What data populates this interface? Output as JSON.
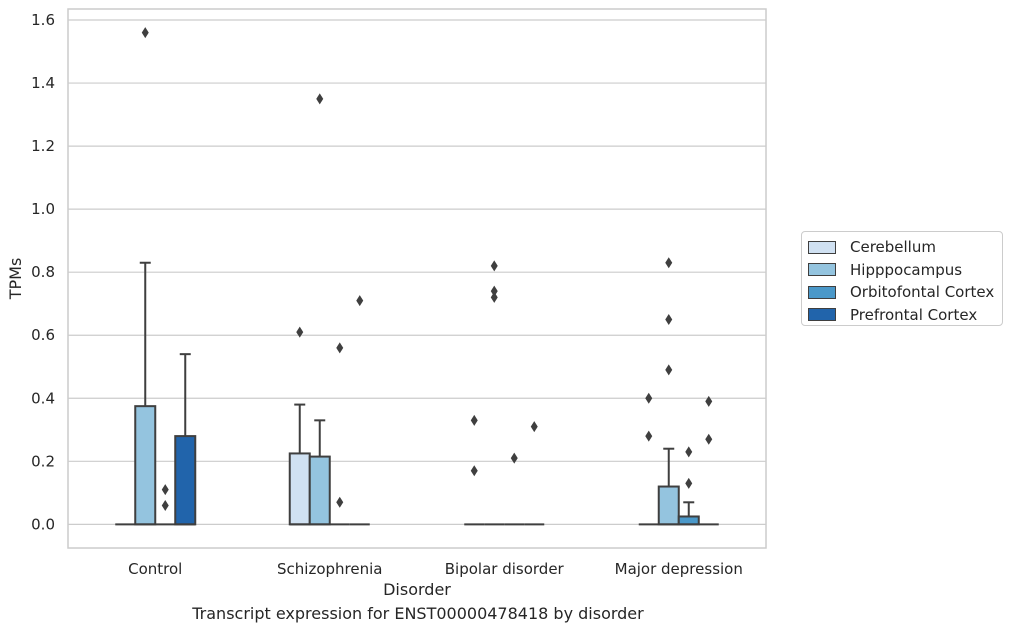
{
  "chart_data": {
    "type": "box",
    "xlabel": "Disorder",
    "ylabel": "TPMs",
    "caption": "Transcript expression for ENST00000478418 by disorder",
    "ylim": [
      -0.075,
      1.635
    ],
    "yticks": [
      0.0,
      0.2,
      0.4,
      0.6,
      0.8,
      1.0,
      1.2,
      1.4,
      1.6
    ],
    "ytick_labels": [
      "0.0",
      "0.2",
      "0.4",
      "0.6",
      "0.8",
      "1.0",
      "1.2",
      "1.4",
      "1.6"
    ],
    "grid": "horizontal",
    "legend_position": "right",
    "categories": [
      "Control",
      "Schizophrenia",
      "Bipolar disorder",
      "Major depression"
    ],
    "series": [
      {
        "name": "Cerebellum",
        "color": "#d0e1f2",
        "boxes": [
          {
            "q1": 0,
            "median": 0,
            "q3": 0,
            "whisker_low": 0,
            "whisker_high": 0,
            "outliers": []
          },
          {
            "q1": 0,
            "median": 0,
            "q3": 0.225,
            "whisker_low": 0,
            "whisker_high": 0.38,
            "outliers": [
              0.61
            ]
          },
          {
            "q1": 0,
            "median": 0,
            "q3": 0,
            "whisker_low": 0,
            "whisker_high": 0,
            "outliers": [
              0.17,
              0.33
            ]
          },
          {
            "q1": 0,
            "median": 0,
            "q3": 0,
            "whisker_low": 0,
            "whisker_high": 0,
            "outliers": [
              0.28,
              0.4
            ]
          }
        ]
      },
      {
        "name": "Hipppocampus",
        "color": "#94c4df",
        "boxes": [
          {
            "q1": 0,
            "median": 0,
            "q3": 0.375,
            "whisker_low": 0,
            "whisker_high": 0.83,
            "outliers": [
              1.56
            ]
          },
          {
            "q1": 0,
            "median": 0,
            "q3": 0.215,
            "whisker_low": 0,
            "whisker_high": 0.33,
            "outliers": [
              1.35
            ]
          },
          {
            "q1": 0,
            "median": 0,
            "q3": 0,
            "whisker_low": 0,
            "whisker_high": 0,
            "outliers": [
              0.72,
              0.74,
              0.82
            ]
          },
          {
            "q1": 0,
            "median": 0,
            "q3": 0.12,
            "whisker_low": 0,
            "whisker_high": 0.24,
            "outliers": [
              0.49,
              0.65,
              0.83
            ]
          }
        ]
      },
      {
        "name": "Orbitofontal Cortex",
        "color": "#4a98c9",
        "boxes": [
          {
            "q1": 0,
            "median": 0,
            "q3": 0,
            "whisker_low": 0,
            "whisker_high": 0,
            "outliers": [
              0.06,
              0.11
            ]
          },
          {
            "q1": 0,
            "median": 0,
            "q3": 0,
            "whisker_low": 0,
            "whisker_high": 0,
            "outliers": [
              0.07,
              0.56
            ]
          },
          {
            "q1": 0,
            "median": 0,
            "q3": 0,
            "whisker_low": 0,
            "whisker_high": 0,
            "outliers": [
              0.21
            ]
          },
          {
            "q1": 0,
            "median": 0,
            "q3": 0.025,
            "whisker_low": 0,
            "whisker_high": 0.07,
            "outliers": [
              0.13,
              0.23
            ]
          }
        ]
      },
      {
        "name": "Prefrontal Cortex",
        "color": "#2164ab",
        "boxes": [
          {
            "q1": 0,
            "median": 0,
            "q3": 0.28,
            "whisker_low": 0,
            "whisker_high": 0.54,
            "outliers": []
          },
          {
            "q1": 0,
            "median": 0,
            "q3": 0,
            "whisker_low": 0,
            "whisker_high": 0,
            "outliers": [
              0.71
            ]
          },
          {
            "q1": 0,
            "median": 0,
            "q3": 0,
            "whisker_low": 0,
            "whisker_high": 0,
            "outliers": [
              0.31
            ]
          },
          {
            "q1": 0,
            "median": 0,
            "q3": 0,
            "whisker_low": 0,
            "whisker_high": 0,
            "outliers": [
              0.27,
              0.39
            ]
          }
        ]
      }
    ],
    "legend": [
      {
        "label": "Cerebellum",
        "color": "#d0e1f2"
      },
      {
        "label": "Hipppocampus",
        "color": "#94c4df"
      },
      {
        "label": "Orbitofontal Cortex",
        "color": "#4a98c9"
      },
      {
        "label": "Prefrontal Cortex",
        "color": "#2164ab"
      }
    ]
  }
}
